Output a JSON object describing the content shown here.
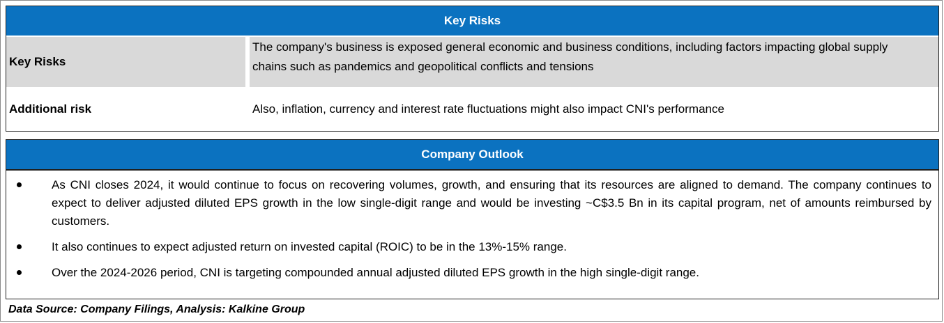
{
  "key_risks": {
    "header": "Key Risks",
    "rows": [
      {
        "label": "Key Risks",
        "value": "The company's business is exposed general economic and business conditions, including factors impacting global supply chains such as pandemics and geopolitical conflicts and tensions"
      },
      {
        "label": "Additional risk",
        "value": "Also, inflation, currency and interest rate fluctuations might also impact CNI's performance"
      }
    ]
  },
  "company_outlook": {
    "header": "Company Outlook",
    "bullets": [
      "As CNI closes 2024, it would continue to focus on recovering volumes, growth, and ensuring that its resources are aligned to demand. The company continues to expect to deliver adjusted diluted EPS growth in the low single-digit range and would be investing ~C$3.5 Bn in its capital program, net of amounts reimbursed by customers.",
      "It also continues to expect adjusted return on invested capital (ROIC) to be in the 13%-15% range.",
      "Over the 2024-2026 period, CNI is targeting compounded annual adjusted diluted EPS growth in the high single-digit range."
    ]
  },
  "source": "Data Source: Company Filings, Analysis: Kalkine Group",
  "colors": {
    "header_blue": "#0b72c0",
    "row_shade": "#d9d9d9"
  }
}
